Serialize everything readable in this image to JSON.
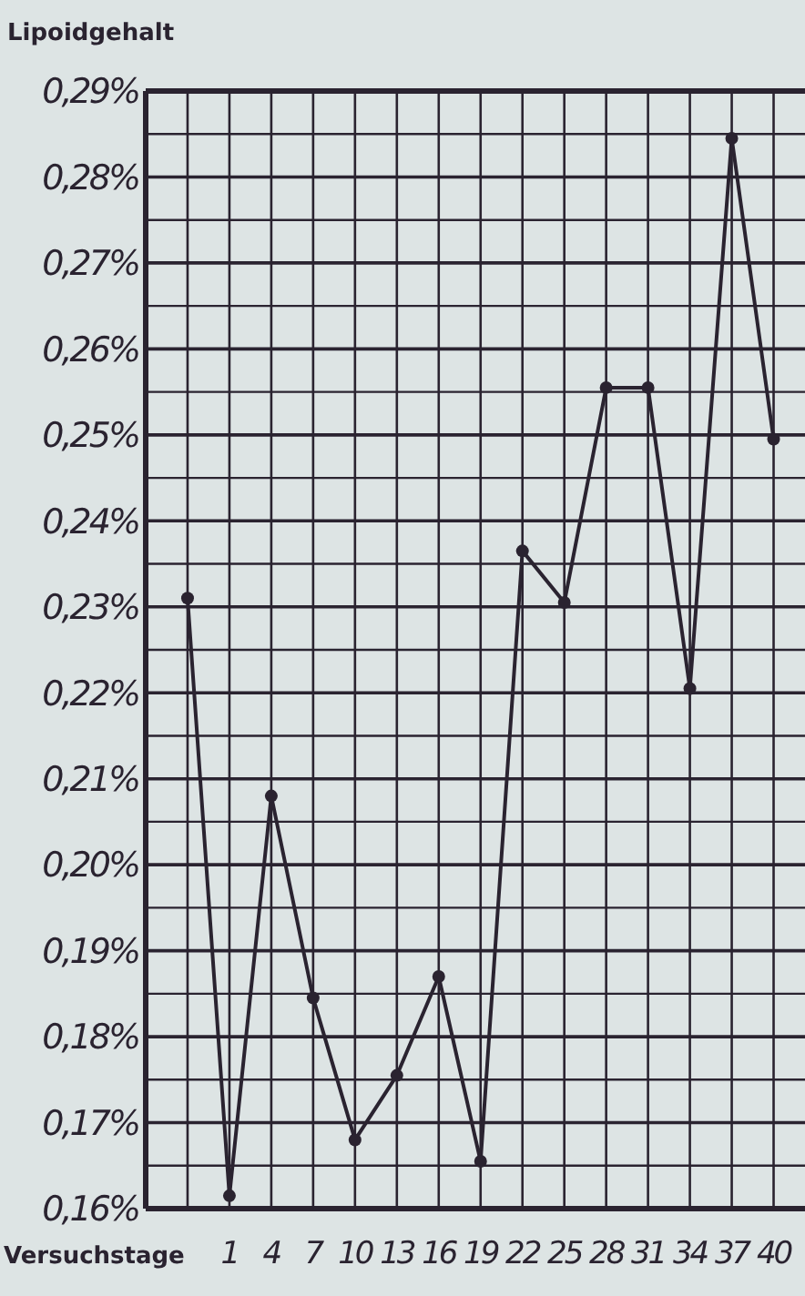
{
  "chart_data": {
    "type": "line",
    "xlabel": "Versuchstage",
    "ylabel": "Lipoidgehalt",
    "categories": [
      null,
      "1",
      "4",
      "7",
      "10",
      "13",
      "16",
      "19",
      "22",
      "25",
      "28",
      "31",
      "34",
      "37",
      "40"
    ],
    "series": [
      {
        "color": "#2a2330",
        "values": [
          0.231,
          0.1615,
          0.208,
          0.1845,
          0.168,
          0.1755,
          0.187,
          0.1655,
          0.2365,
          0.2305,
          0.2555,
          0.2555,
          0.2205,
          0.2845,
          0.2495
        ]
      }
    ],
    "ylim": [
      0.16,
      0.29
    ],
    "yticks": [
      {
        "value": 0.16,
        "label": "0,16%"
      },
      {
        "value": 0.165,
        "label": null
      },
      {
        "value": 0.17,
        "label": "0,17%"
      },
      {
        "value": 0.175,
        "label": null
      },
      {
        "value": 0.18,
        "label": "0,18%"
      },
      {
        "value": 0.185,
        "label": null
      },
      {
        "value": 0.19,
        "label": "0,19%"
      },
      {
        "value": 0.195,
        "label": null
      },
      {
        "value": 0.2,
        "label": "0,20%"
      },
      {
        "value": 0.205,
        "label": null
      },
      {
        "value": 0.21,
        "label": "0,21%"
      },
      {
        "value": 0.215,
        "label": null
      },
      {
        "value": 0.22,
        "label": "0,22%"
      },
      {
        "value": 0.225,
        "label": null
      },
      {
        "value": 0.23,
        "label": "0,23%"
      },
      {
        "value": 0.235,
        "label": null
      },
      {
        "value": 0.24,
        "label": "0,24%"
      },
      {
        "value": 0.245,
        "label": null
      },
      {
        "value": 0.25,
        "label": "0,25%"
      },
      {
        "value": 0.255,
        "label": null
      },
      {
        "value": 0.26,
        "label": "0,26%"
      },
      {
        "value": 0.265,
        "label": null
      },
      {
        "value": 0.27,
        "label": "0,27%"
      },
      {
        "value": 0.275,
        "label": null
      },
      {
        "value": 0.28,
        "label": "0,28%"
      },
      {
        "value": 0.285,
        "label": null
      },
      {
        "value": 0.29,
        "label": "0,29%"
      }
    ],
    "grid": true,
    "marker": "circle",
    "line_style": "solid"
  }
}
